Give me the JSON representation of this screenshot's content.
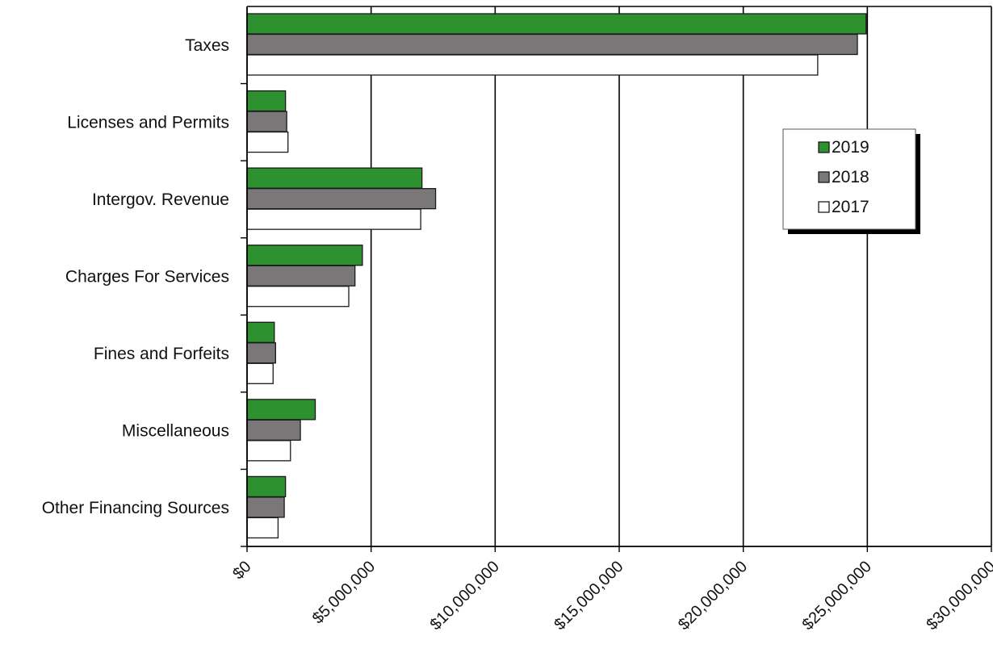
{
  "chart_data": {
    "type": "bar",
    "orientation": "horizontal",
    "categories": [
      "Taxes",
      "Licenses and Permits",
      "Intergov. Revenue",
      "Charges For Services",
      "Fines and Forfeits",
      "Miscellaneous",
      "Other Financing Sources"
    ],
    "series": [
      {
        "name": "2019",
        "color": "#2e9130",
        "values": [
          24950000,
          1550000,
          7050000,
          4650000,
          1100000,
          2750000,
          1550000
        ]
      },
      {
        "name": "2018",
        "color": "#7a7778",
        "values": [
          24600000,
          1600000,
          7600000,
          4350000,
          1150000,
          2150000,
          1500000
        ]
      },
      {
        "name": "2017",
        "color": "#ffffff",
        "values": [
          23000000,
          1650000,
          7000000,
          4100000,
          1050000,
          1750000,
          1250000
        ]
      }
    ],
    "xlim": [
      0,
      30000000
    ],
    "xticks": [
      "$0",
      "$5,000,000",
      "$10,000,000",
      "$15,000,000",
      "$20,000,000",
      "$25,000,000",
      "$30,000,000"
    ],
    "grid": true,
    "legend_position": "right",
    "title": "",
    "xlabel": "",
    "ylabel": ""
  }
}
